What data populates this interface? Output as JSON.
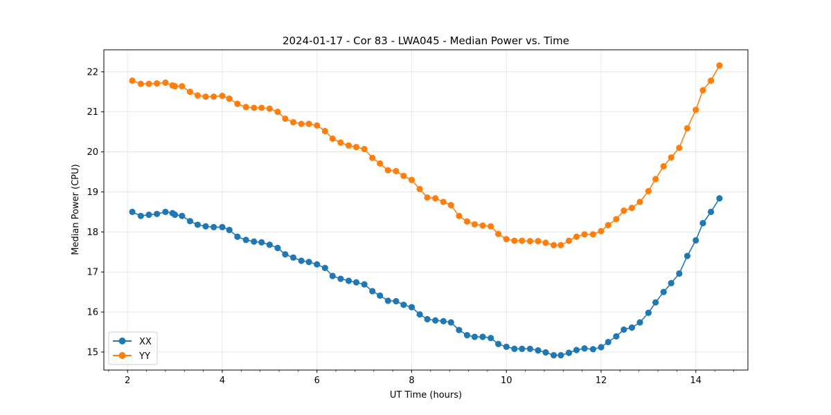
{
  "chart_data": {
    "type": "line",
    "title": "2024-01-17 - Cor 83 - LWA045 - Median Power vs. Time",
    "xlabel": "UT Time (hours)",
    "ylabel": "Median Power (CPU)",
    "xlim": [
      1.5,
      15.1
    ],
    "ylim": [
      14.55,
      22.55
    ],
    "xticks": [
      2,
      4,
      6,
      8,
      10,
      12,
      14
    ],
    "xtick_labels": [
      "2",
      "4",
      "6",
      "8",
      "10",
      "12",
      "14"
    ],
    "yticks": [
      15,
      16,
      17,
      18,
      19,
      20,
      21,
      22
    ],
    "ytick_labels": [
      "15",
      "16",
      "17",
      "18",
      "19",
      "20",
      "21",
      "22"
    ],
    "grid": true,
    "legend_position": "bottom-left",
    "x": [
      2.1,
      2.28,
      2.45,
      2.62,
      2.8,
      2.95,
      3.0,
      3.15,
      3.32,
      3.48,
      3.65,
      3.82,
      4.0,
      4.15,
      4.32,
      4.5,
      4.67,
      4.83,
      5.0,
      5.17,
      5.33,
      5.5,
      5.67,
      5.83,
      6.0,
      6.17,
      6.33,
      6.5,
      6.67,
      6.83,
      7.0,
      7.17,
      7.33,
      7.5,
      7.67,
      7.83,
      8.0,
      8.17,
      8.33,
      8.5,
      8.67,
      8.83,
      9.0,
      9.17,
      9.33,
      9.5,
      9.67,
      9.83,
      10.0,
      10.17,
      10.33,
      10.5,
      10.67,
      10.83,
      11.0,
      11.15,
      11.32,
      11.48,
      11.65,
      11.83,
      12.0,
      12.15,
      12.32,
      12.48,
      12.65,
      12.82,
      13.0,
      13.15,
      13.32,
      13.48,
      13.65,
      13.82,
      14.0,
      14.15,
      14.32,
      14.5
    ],
    "series": [
      {
        "name": "XX",
        "color": "#1f77b4",
        "values": [
          18.5,
          18.4,
          18.43,
          18.45,
          18.5,
          18.47,
          18.43,
          18.4,
          18.27,
          18.18,
          18.14,
          18.12,
          18.12,
          18.05,
          17.88,
          17.8,
          17.76,
          17.74,
          17.68,
          17.6,
          17.44,
          17.36,
          17.28,
          17.25,
          17.19,
          17.1,
          16.9,
          16.83,
          16.78,
          16.74,
          16.69,
          16.52,
          16.41,
          16.28,
          16.27,
          16.18,
          16.12,
          15.94,
          15.82,
          15.79,
          15.77,
          15.74,
          15.55,
          15.42,
          15.38,
          15.38,
          15.35,
          15.2,
          15.13,
          15.08,
          15.08,
          15.08,
          15.04,
          14.99,
          14.92,
          14.92,
          14.98,
          15.05,
          15.09,
          15.07,
          15.12,
          15.25,
          15.39,
          15.56,
          15.61,
          15.74,
          15.98,
          16.24,
          16.5,
          16.72,
          16.96,
          17.4,
          17.79,
          18.22,
          18.5,
          18.84
        ]
      },
      {
        "name": "YY",
        "color": "#ff7f0e",
        "values": [
          21.78,
          21.7,
          21.7,
          21.71,
          21.73,
          21.66,
          21.64,
          21.64,
          21.5,
          21.41,
          21.38,
          21.38,
          21.4,
          21.33,
          21.2,
          21.12,
          21.1,
          21.1,
          21.08,
          21.0,
          20.83,
          20.74,
          20.7,
          20.7,
          20.66,
          20.52,
          20.33,
          20.23,
          20.16,
          20.12,
          20.07,
          19.85,
          19.71,
          19.54,
          19.52,
          19.4,
          19.3,
          19.07,
          18.86,
          18.84,
          18.75,
          18.67,
          18.4,
          18.26,
          18.19,
          18.16,
          18.14,
          17.95,
          17.82,
          17.78,
          17.78,
          17.77,
          17.77,
          17.73,
          17.67,
          17.67,
          17.78,
          17.88,
          17.94,
          17.94,
          18.02,
          18.17,
          18.32,
          18.53,
          18.6,
          18.75,
          19.02,
          19.32,
          19.64,
          19.86,
          20.1,
          20.59,
          21.05,
          21.54,
          21.78,
          22.16
        ]
      }
    ]
  }
}
